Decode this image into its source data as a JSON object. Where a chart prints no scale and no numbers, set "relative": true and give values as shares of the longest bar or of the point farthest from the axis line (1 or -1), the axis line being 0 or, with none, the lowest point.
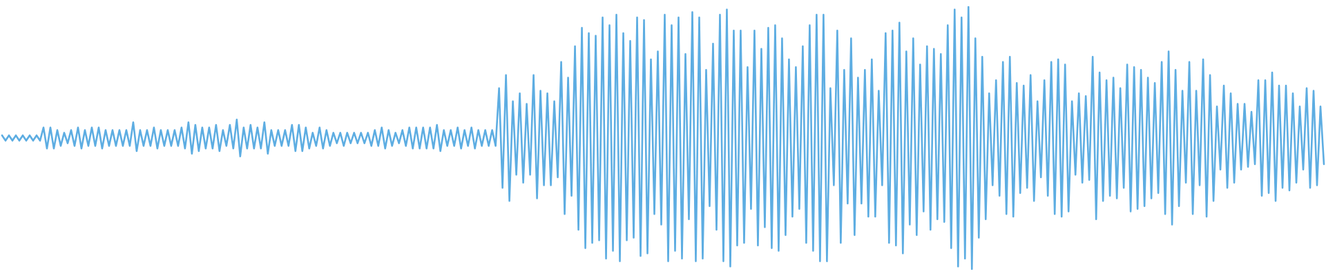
{
  "chart_data": {
    "type": "line",
    "relative": true,
    "color": "#5dade2",
    "marker": "none",
    "line_style": "solid",
    "categories": [
      null,
      null,
      null,
      null,
      null,
      null,
      null,
      null,
      null,
      null,
      null,
      null,
      null,
      null,
      null,
      null,
      null,
      null,
      null,
      null,
      null,
      null,
      null,
      null,
      null,
      null,
      null,
      null,
      null,
      null,
      null,
      null,
      null,
      null,
      null,
      null,
      null,
      null,
      null,
      null,
      null,
      null,
      null,
      null,
      null,
      null,
      null,
      null,
      null,
      null,
      null,
      null,
      null,
      null,
      null,
      null,
      null,
      null,
      null,
      null,
      null,
      null,
      null,
      null,
      null,
      null,
      null,
      null,
      null,
      null,
      null,
      null,
      null,
      null,
      null,
      null,
      null,
      null,
      null,
      null,
      null,
      null,
      null,
      null,
      null,
      null,
      null,
      null,
      null,
      null,
      null,
      null,
      null,
      null,
      null,
      null,
      null,
      null,
      null,
      null,
      null,
      null,
      null,
      null,
      null,
      null,
      null,
      null,
      null,
      null,
      null,
      null,
      null,
      null,
      null,
      null,
      null,
      null,
      null,
      null,
      null,
      null,
      null,
      null,
      null,
      null,
      null,
      null,
      null,
      null,
      null,
      null,
      null,
      null,
      null,
      null,
      null,
      null,
      null,
      null,
      null,
      null,
      null,
      null,
      null,
      null,
      null,
      null,
      null,
      null,
      null,
      null,
      null,
      null,
      null,
      null,
      null,
      null,
      null,
      null,
      null,
      null,
      null,
      null,
      null,
      null,
      null,
      null,
      null,
      null,
      null,
      null,
      null,
      null,
      null,
      null,
      null,
      null,
      null,
      null,
      null,
      null,
      null,
      null,
      null,
      null,
      null,
      null,
      null,
      null,
      null,
      null,
      null,
      null,
      null,
      null,
      null,
      null,
      null,
      null,
      null,
      null,
      null,
      null,
      null,
      null,
      null,
      null,
      null,
      null,
      null,
      null,
      null,
      null,
      null,
      null,
      null,
      null,
      null,
      null,
      null,
      null,
      null,
      null,
      null,
      null,
      null,
      null,
      null,
      null,
      null,
      null,
      null,
      null,
      null,
      null,
      null,
      null,
      null,
      null,
      null,
      null,
      null,
      null,
      null,
      null,
      null,
      null,
      null,
      null,
      null,
      null,
      null,
      null,
      null,
      null,
      null,
      null,
      null,
      null,
      null,
      null,
      null,
      null,
      null,
      null,
      null,
      null,
      null,
      null,
      null,
      null,
      null,
      null,
      null,
      null,
      null,
      null,
      null,
      null,
      null,
      null,
      null,
      null,
      null,
      null,
      null,
      null,
      null,
      null,
      null,
      null,
      null,
      null,
      null,
      null,
      null,
      null,
      null,
      null,
      null,
      null,
      null,
      null,
      null,
      null,
      null,
      null,
      null,
      null,
      null,
      null,
      null,
      null,
      null,
      null,
      null,
      null,
      null,
      null,
      null,
      null,
      null,
      null,
      null,
      null,
      null,
      null,
      null,
      null,
      null,
      null,
      null,
      null,
      null,
      null,
      null,
      null,
      null,
      null,
      null,
      null,
      null,
      null,
      null,
      null,
      null,
      null,
      null,
      null,
      null,
      null,
      null,
      null,
      null,
      null,
      null,
      null,
      null,
      null,
      null,
      null,
      null,
      null,
      null,
      null,
      null,
      null,
      null,
      null,
      null,
      null,
      null,
      null,
      null,
      null,
      null,
      null,
      null,
      null,
      null,
      null,
      null,
      null
    ],
    "values": [
      0.51,
      0.49,
      0.51,
      0.49,
      0.51,
      0.49,
      0.51,
      0.49,
      0.51,
      0.49,
      0.51,
      0.49,
      0.54,
      0.46,
      0.54,
      0.46,
      0.53,
      0.47,
      0.52,
      0.48,
      0.53,
      0.47,
      0.54,
      0.46,
      0.53,
      0.47,
      0.54,
      0.47,
      0.54,
      0.46,
      0.53,
      0.47,
      0.53,
      0.47,
      0.53,
      0.47,
      0.53,
      0.47,
      0.56,
      0.45,
      0.53,
      0.47,
      0.53,
      0.47,
      0.54,
      0.46,
      0.53,
      0.47,
      0.53,
      0.47,
      0.53,
      0.47,
      0.54,
      0.46,
      0.56,
      0.44,
      0.55,
      0.45,
      0.54,
      0.46,
      0.54,
      0.46,
      0.55,
      0.45,
      0.53,
      0.47,
      0.55,
      0.46,
      0.57,
      0.43,
      0.54,
      0.46,
      0.55,
      0.46,
      0.54,
      0.46,
      0.56,
      0.44,
      0.53,
      0.47,
      0.53,
      0.47,
      0.53,
      0.47,
      0.55,
      0.45,
      0.55,
      0.45,
      0.54,
      0.46,
      0.52,
      0.47,
      0.54,
      0.46,
      0.53,
      0.47,
      0.52,
      0.48,
      0.52,
      0.47,
      0.52,
      0.48,
      0.52,
      0.48,
      0.52,
      0.48,
      0.52,
      0.47,
      0.53,
      0.47,
      0.54,
      0.46,
      0.53,
      0.47,
      0.52,
      0.48,
      0.53,
      0.47,
      0.54,
      0.46,
      0.54,
      0.46,
      0.54,
      0.46,
      0.54,
      0.46,
      0.55,
      0.45,
      0.53,
      0.47,
      0.53,
      0.47,
      0.54,
      0.46,
      0.53,
      0.47,
      0.54,
      0.46,
      0.53,
      0.47,
      0.53,
      0.47,
      0.53,
      0.47,
      0.69,
      0.31,
      0.74,
      0.26,
      0.64,
      0.36,
      0.67,
      0.33,
      0.63,
      0.36,
      0.74,
      0.27,
      0.68,
      0.32,
      0.67,
      0.32,
      0.64,
      0.35,
      0.79,
      0.21,
      0.73,
      0.28,
      0.85,
      0.15,
      0.92,
      0.08,
      0.9,
      0.1,
      0.89,
      0.11,
      0.96,
      0.04,
      0.93,
      0.07,
      0.97,
      0.03,
      0.9,
      0.11,
      0.87,
      0.12,
      0.96,
      0.05,
      0.95,
      0.06,
      0.8,
      0.21,
      0.83,
      0.17,
      0.97,
      0.03,
      0.93,
      0.07,
      0.96,
      0.04,
      0.82,
      0.19,
      0.98,
      0.03,
      0.96,
      0.04,
      0.76,
      0.24,
      0.86,
      0.15,
      0.97,
      0.03,
      0.99,
      0.01,
      0.91,
      0.09,
      0.91,
      0.1,
      0.77,
      0.23,
      0.91,
      0.09,
      0.84,
      0.16,
      0.92,
      0.08,
      0.93,
      0.07,
      0.88,
      0.13,
      0.8,
      0.2,
      0.77,
      0.23,
      0.85,
      0.1,
      0.93,
      0.07,
      0.97,
      0.03,
      0.97,
      0.03,
      0.69,
      0.32,
      0.91,
      0.1,
      0.76,
      0.25,
      0.88,
      0.13,
      0.73,
      0.25,
      0.76,
      0.2,
      0.8,
      0.2,
      0.68,
      0.32,
      0.9,
      0.1,
      0.91,
      0.09,
      0.94,
      0.06,
      0.83,
      0.17,
      0.88,
      0.13,
      0.78,
      0.22,
      0.85,
      0.15,
      0.84,
      0.19,
      0.82,
      0.18,
      0.93,
      0.08,
      0.99,
      0.01,
      0.96,
      0.04,
      1,
      0,
      0.88,
      0.12,
      0.81,
      0.19,
      0.67,
      0.32,
      0.72,
      0.28,
      0.79,
      0.21,
      0.81,
      0.2,
      0.71,
      0.29,
      0.7,
      0.31,
      0.74,
      0.26,
      0.64,
      0.35,
      0.72,
      0.28,
      0.79,
      0.21,
      0.8,
      0.2,
      0.78,
      0.22,
      0.64,
      0.36,
      0.67,
      0.33,
      0.66,
      0.34,
      0.81,
      0.19,
      0.75,
      0.26,
      0.72,
      0.28,
      0.73,
      0.27,
      0.69,
      0.31,
      0.78,
      0.22,
      0.77,
      0.23,
      0.76,
      0.24,
      0.73,
      0.27,
      0.71,
      0.29,
      0.79,
      0.21,
      0.83,
      0.17,
      0.76,
      0.24,
      0.68,
      0.33,
      0.79,
      0.21,
      0.68,
      0.32,
      0.8,
      0.2,
      0.74,
      0.26,
      0.62,
      0.38,
      0.7,
      0.31,
      0.67,
      0.33,
      0.63,
      0.38,
      0.63,
      0.39,
      0.6,
      0.4,
      0.72,
      0.28,
      0.72,
      0.29,
      0.75,
      0.26,
      0.7,
      0.31,
      0.7,
      0.3,
      0.67,
      0.33,
      0.62,
      0.38,
      0.69,
      0.31,
      0.68,
      0.32,
      0.62,
      0.4
    ]
  }
}
